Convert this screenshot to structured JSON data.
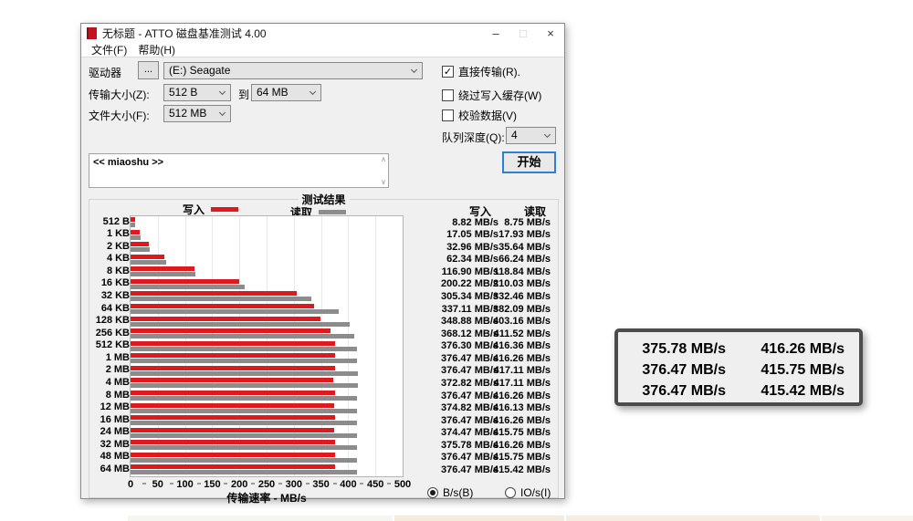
{
  "window": {
    "title": "无标题 - ATTO 磁盘基准测试 4.00"
  },
  "icons": {
    "minimize_glyph": "–",
    "maximize_glyph": "□",
    "close_glyph": "×",
    "scroll_up_glyph": "∧",
    "scroll_down_glyph": "∨",
    "check_glyph": "✓"
  },
  "menu": {
    "items": [
      "文件(F)",
      "帮助(H)"
    ]
  },
  "form": {
    "drive_label": "驱动器",
    "browse_button": "...",
    "drive_value": "(E:) Seagate",
    "transfer_size_label": "传输大小(Z):",
    "transfer_from_value": "512 B",
    "to_label": "到",
    "transfer_to_value": "64 MB",
    "file_size_label": "文件大小(F):",
    "file_size_value": "512 MB",
    "checkboxes": [
      {
        "label": "直接传输(R).",
        "checked": true
      },
      {
        "label": "绕过写入缓存(W)",
        "checked": false
      },
      {
        "label": "校验数据(V)",
        "checked": false
      }
    ],
    "queue_depth_label": "队列深度(Q):",
    "queue_depth_value": "4",
    "start_button": "开始",
    "description": "<< miaoshu >>"
  },
  "results": {
    "group_title": "测试结果",
    "legend_write": "写入",
    "legend_read": "读取",
    "col_write": "写入",
    "col_read": "读取",
    "radios": [
      {
        "label": "B/s(B)",
        "selected": true
      },
      {
        "label": "IO/s(I)",
        "selected": false
      }
    ]
  },
  "chart_data": {
    "type": "bar",
    "orientation": "horizontal",
    "title": "测试结果",
    "categories": [
      "512 B",
      "1 KB",
      "2 KB",
      "4 KB",
      "8 KB",
      "16 KB",
      "32 KB",
      "64 KB",
      "128 KB",
      "256 KB",
      "512 KB",
      "1 MB",
      "2 MB",
      "4 MB",
      "8 MB",
      "12 MB",
      "16 MB",
      "24 MB",
      "32 MB",
      "48 MB",
      "64 MB"
    ],
    "series": [
      {
        "name": "写入",
        "color": "#df1a1f",
        "values": [
          8.82,
          17.05,
          32.96,
          62.34,
          116.9,
          200.22,
          305.34,
          337.11,
          348.88,
          368.12,
          376.3,
          376.47,
          376.47,
          372.82,
          376.47,
          374.82,
          376.47,
          374.47,
          375.78,
          376.47,
          376.47
        ]
      },
      {
        "name": "读取",
        "color": "#8c8c8c",
        "values": [
          8.75,
          17.93,
          35.64,
          66.24,
          118.84,
          210.03,
          332.46,
          382.09,
          403.16,
          411.52,
          416.36,
          416.26,
          417.11,
          417.11,
          416.26,
          416.13,
          416.26,
          415.75,
          416.26,
          415.75,
          415.42
        ]
      }
    ],
    "xlabel": "传输速率 - MB/s",
    "xlim": [
      0,
      500
    ],
    "xticks": [
      0,
      50,
      100,
      150,
      200,
      250,
      300,
      350,
      400,
      450,
      500
    ],
    "value_unit": "MB/s",
    "grid": true,
    "legend_position": "top"
  },
  "overlay": {
    "rows": [
      [
        "375.78 MB/s",
        "416.26 MB/s"
      ],
      [
        "376.47 MB/s",
        "415.75 MB/s"
      ],
      [
        "376.47 MB/s",
        "415.42 MB/s"
      ]
    ]
  },
  "colors": {
    "write_bar": "#df1a1f",
    "read_bar": "#8c8c8c",
    "default_button_border": "#2f7fd6",
    "dialog_background": "#f0f0f0"
  }
}
